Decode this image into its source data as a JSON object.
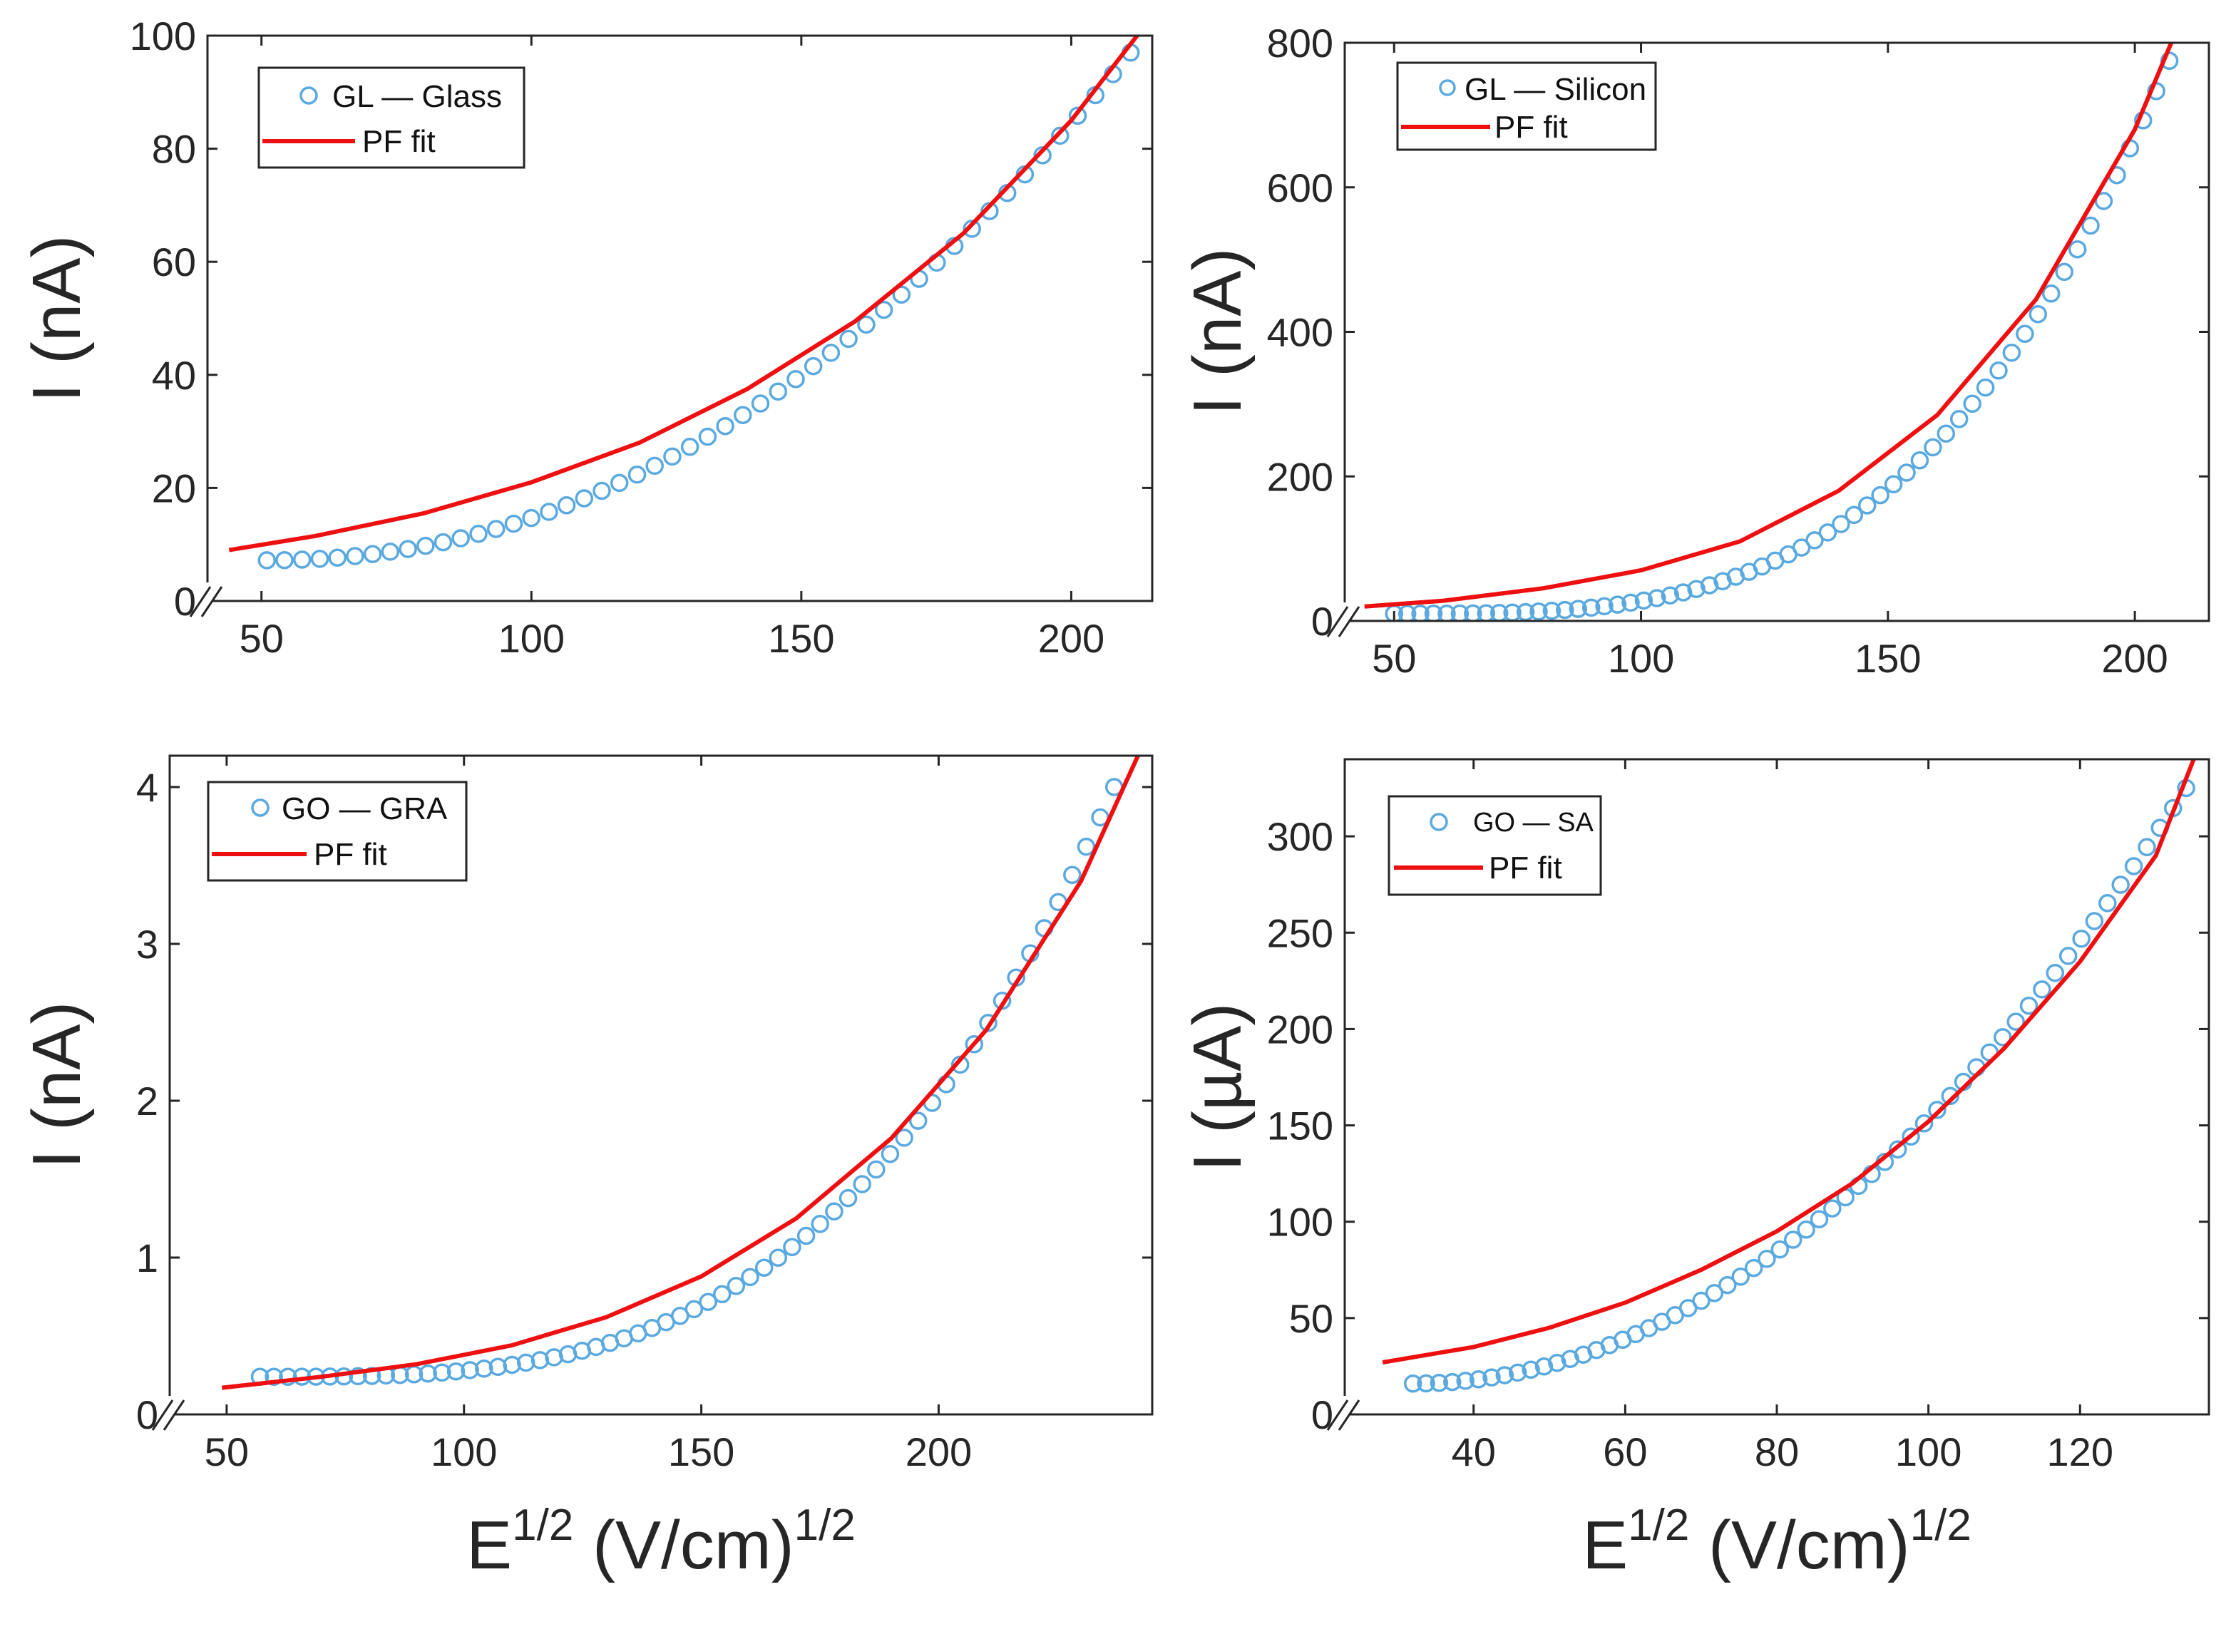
{
  "figure": {
    "x_axis_label": {
      "base": "E",
      "sup": "1/2",
      "rest": " (V/cm)",
      "sup2": "1/2"
    }
  },
  "chart_data": [
    {
      "type": "scatter",
      "id": "gl-glass",
      "xlim": [
        40,
        215
      ],
      "ylim": [
        0,
        100
      ],
      "xticks": [
        "50",
        "100",
        "150",
        "200"
      ],
      "xtick_values": [
        50,
        100,
        150,
        200
      ],
      "yticks": [
        "0",
        "20",
        "40",
        "60",
        "80",
        "100"
      ],
      "ytick_values": [
        0,
        20,
        40,
        60,
        80,
        100
      ],
      "ylabel": "I (nA)",
      "xlabel": "",
      "legend": {
        "position": "top-left",
        "markers_label": "GL — Glass",
        "fit_label": "PF fit"
      },
      "series": [
        {
          "name": "GL — Glass",
          "kind": "markers",
          "x_start": 51,
          "x_end": 211,
          "count": 50,
          "y_start": 7.2,
          "y_end": 97,
          "y_shape_power": 2.1
        },
        {
          "name": "PF fit",
          "kind": "line",
          "x": [
            44,
            60,
            80,
            100,
            120,
            140,
            160,
            180,
            200,
            213
          ],
          "y": [
            9,
            11.5,
            15.5,
            21,
            28,
            37.5,
            49.5,
            65,
            85,
            101
          ]
        }
      ],
      "axis_break": true
    },
    {
      "type": "scatter",
      "id": "gl-silicon",
      "xlim": [
        40,
        215
      ],
      "ylim": [
        0,
        800
      ],
      "xticks": [
        "50",
        "100",
        "150",
        "200"
      ],
      "xtick_values": [
        50,
        100,
        150,
        200
      ],
      "yticks": [
        "0",
        "200",
        "400",
        "600",
        "800"
      ],
      "ytick_values": [
        0,
        200,
        400,
        600,
        800
      ],
      "ylabel": "I (nA)",
      "xlabel": "",
      "legend": {
        "position": "top-left",
        "markers_label": "GL — Silicon",
        "fit_label": "PF fit"
      },
      "series": [
        {
          "name": "GL — Silicon",
          "kind": "markers",
          "x_start": 50,
          "x_end": 207,
          "count": 60,
          "y_start": 10,
          "y_end": 775,
          "y_shape_power": 3.3
        },
        {
          "name": "PF fit",
          "kind": "line",
          "x": [
            44,
            60,
            80,
            100,
            120,
            140,
            160,
            180,
            200,
            208
          ],
          "y": [
            20,
            28,
            45,
            70,
            110,
            180,
            285,
            445,
            680,
            810
          ]
        }
      ],
      "axis_break": true
    },
    {
      "type": "scatter",
      "id": "go-gra",
      "xlim": [
        38,
        245
      ],
      "ylim": [
        0,
        4.2
      ],
      "xticks": [
        "50",
        "100",
        "150",
        "200"
      ],
      "xtick_values": [
        50,
        100,
        150,
        200
      ],
      "yticks": [
        "0",
        "1",
        "2",
        "3",
        "4"
      ],
      "ytick_values": [
        0,
        1,
        2,
        3,
        4
      ],
      "ylabel": "I (nA)",
      "xlabel": "E1/2 (V/cm)1/2",
      "legend": {
        "position": "top-left",
        "markers_label": "GO — GRA",
        "fit_label": "PF fit"
      },
      "series": [
        {
          "name": "GO — GRA",
          "kind": "markers",
          "x_start": 57,
          "x_end": 237,
          "count": 62,
          "y_start": 0.24,
          "y_end": 4.0,
          "y_shape_power": 3.2
        },
        {
          "name": "PF fit",
          "kind": "line",
          "x": [
            49,
            70,
            90,
            110,
            130,
            150,
            170,
            190,
            210,
            230,
            242
          ],
          "y": [
            0.17,
            0.24,
            0.32,
            0.44,
            0.62,
            0.88,
            1.25,
            1.76,
            2.45,
            3.4,
            4.2
          ]
        }
      ],
      "axis_break": true
    },
    {
      "type": "scatter",
      "id": "go-sa",
      "xlim": [
        23,
        137
      ],
      "ylim": [
        0,
        340
      ],
      "xticks": [
        "40",
        "60",
        "80",
        "100",
        "120"
      ],
      "xtick_values": [
        40,
        60,
        80,
        100,
        120
      ],
      "yticks": [
        "0",
        "50",
        "100",
        "150",
        "200",
        "250",
        "300"
      ],
      "ytick_values": [
        0,
        50,
        100,
        150,
        200,
        250,
        300
      ],
      "ylabel": "I (µA)",
      "xlabel": "E1/2 (V/cm)1/2",
      "legend": {
        "position": "top-left",
        "markers_label": "GO — SA",
        "fit_label": "PF fit"
      },
      "series": [
        {
          "name": "GO — SA",
          "kind": "markers",
          "x_start": 32,
          "x_end": 134,
          "count": 60,
          "y_start": 16,
          "y_end": 325,
          "y_shape_power": 2.0
        },
        {
          "name": "PF fit",
          "kind": "line",
          "x": [
            28,
            40,
            50,
            60,
            70,
            80,
            90,
            100,
            110,
            120,
            130,
            135
          ],
          "y": [
            27,
            35,
            45,
            58,
            75,
            95,
            120,
            152,
            190,
            235,
            290,
            340
          ]
        }
      ],
      "axis_break": true
    }
  ]
}
